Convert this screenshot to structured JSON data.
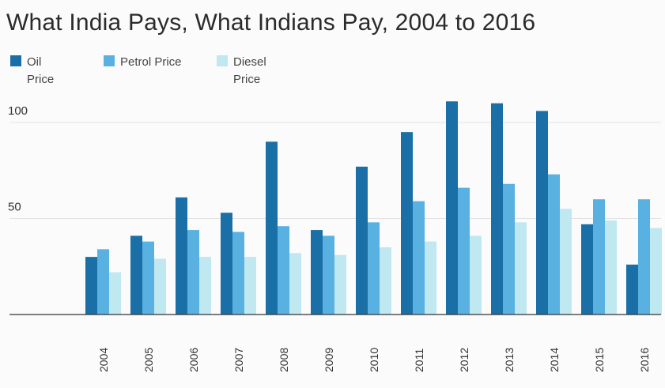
{
  "chart_data": {
    "type": "bar",
    "title": "What India Pays, What Indians Pay, 2004 to 2016",
    "xlabel": "",
    "ylabel": "",
    "ylim": [
      0,
      110
    ],
    "yticks": [
      50,
      100
    ],
    "legend_position": "top-left",
    "grid": true,
    "categories": [
      "2004",
      "2005",
      "2006",
      "2007",
      "2008",
      "2009",
      "2010",
      "2011",
      "2012",
      "2013",
      "2014",
      "2015",
      "2016"
    ],
    "series": [
      {
        "name": "Oil\nPrice",
        "label_lines": [
          "Oil",
          "Price"
        ],
        "color": "#1a6fa6",
        "values": [
          30,
          41,
          61,
          53,
          90,
          44,
          77,
          95,
          111,
          110,
          106,
          47,
          26
        ]
      },
      {
        "name": "Petrol Price",
        "label_lines": [
          "Petrol Price"
        ],
        "color": "#58b1e1",
        "values": [
          34,
          38,
          44,
          43,
          46,
          41,
          48,
          59,
          66,
          68,
          73,
          60,
          60
        ]
      },
      {
        "name": "Diesel\nPrice",
        "label_lines": [
          "Diesel",
          "Price"
        ],
        "color": "#bfe8f1",
        "values": [
          22,
          29,
          30,
          30,
          32,
          31,
          35,
          38,
          41,
          48,
          55,
          49,
          45
        ]
      }
    ]
  }
}
